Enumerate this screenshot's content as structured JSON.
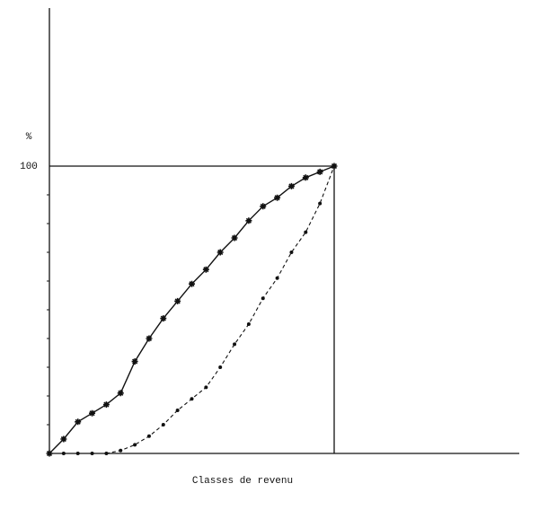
{
  "chart_data": {
    "type": "line",
    "x_label": "Classes de revenu",
    "y_label": "%",
    "x": [
      0,
      5,
      10,
      15,
      20,
      25,
      30,
      35,
      40,
      45,
      50,
      55,
      60,
      65,
      70,
      75,
      80,
      85,
      90,
      95,
      100
    ],
    "series": [
      {
        "color": "#111111",
        "dash": false,
        "marker": "star",
        "values": [
          0,
          5,
          11,
          14,
          17,
          21,
          32,
          40,
          47,
          53,
          59,
          64,
          70,
          75,
          81,
          86,
          89,
          93,
          96,
          98,
          100
        ]
      },
      {
        "color": "#111111",
        "dash": true,
        "marker": "dot",
        "values": [
          0,
          0,
          0,
          0,
          0,
          1,
          3,
          6,
          10,
          15,
          19,
          23,
          30,
          38,
          45,
          54,
          61,
          70,
          77,
          87,
          100
        ]
      }
    ],
    "xlim": [
      0,
      165
    ],
    "ylim": [
      0,
      155
    ],
    "yticks": [
      100
    ],
    "yminor_ticks": [
      10,
      20,
      30,
      40,
      50,
      60,
      70,
      80,
      90
    ]
  }
}
